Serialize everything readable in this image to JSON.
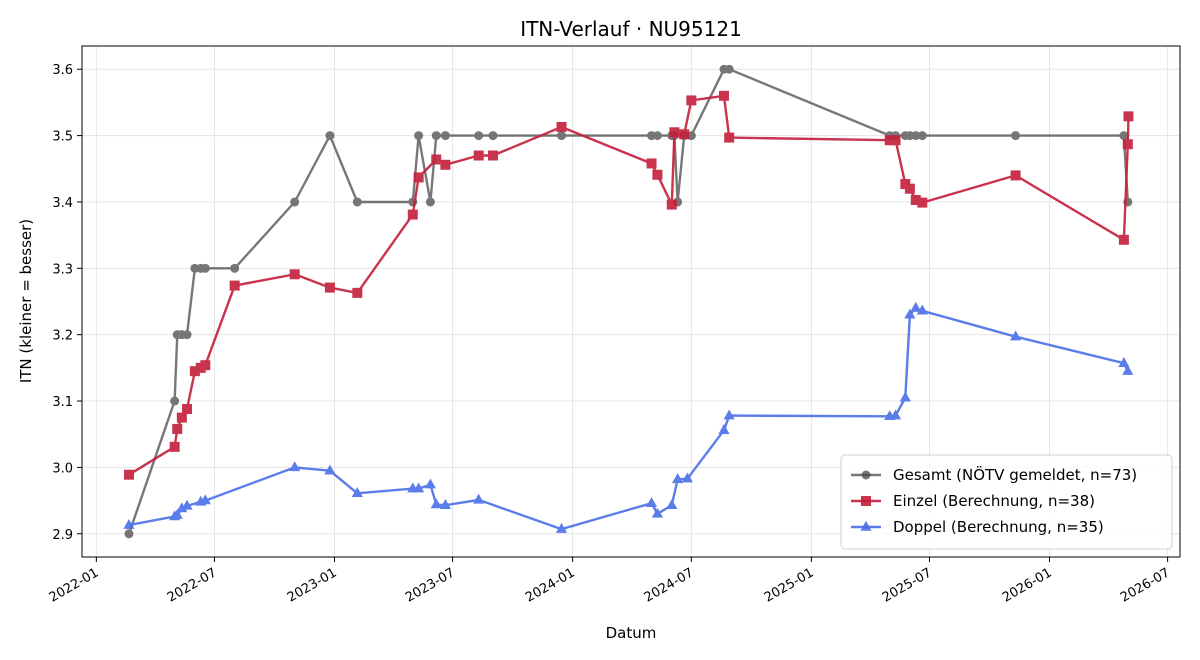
{
  "chart_data": {
    "type": "line",
    "title": "ITN-Verlauf · NU95121",
    "xlabel": "Datum",
    "ylabel": "ITN  (kleiner = besser)",
    "ylim": [
      2.865,
      3.635
    ],
    "xlim": [
      "2021-12-10",
      "2026-07-20"
    ],
    "grid": true,
    "legend_position": "lower-right",
    "x_ticks": [
      "2022-01",
      "2022-07",
      "2023-01",
      "2023-07",
      "2024-01",
      "2024-07",
      "2025-01",
      "2025-07",
      "2026-01",
      "2026-07"
    ],
    "y_ticks": [
      "2.9",
      "3.0",
      "3.1",
      "3.2",
      "3.3",
      "3.4",
      "3.5",
      "3.6"
    ],
    "series": [
      {
        "name": "Gesamt (NÖTV gemeldet, n=73)",
        "color": "#444444",
        "marker": "circle",
        "points": [
          [
            "2022-02-20",
            2.9
          ],
          [
            "2022-05-01",
            3.1
          ],
          [
            "2022-05-05",
            3.2
          ],
          [
            "2022-05-12",
            3.2
          ],
          [
            "2022-05-20",
            3.2
          ],
          [
            "2022-06-01",
            3.3
          ],
          [
            "2022-06-10",
            3.3
          ],
          [
            "2022-06-17",
            3.3
          ],
          [
            "2022-08-01",
            3.3
          ],
          [
            "2022-11-01",
            3.4
          ],
          [
            "2022-12-25",
            3.5
          ],
          [
            "2023-02-05",
            3.4
          ],
          [
            "2023-05-01",
            3.4
          ],
          [
            "2023-05-10",
            3.5
          ],
          [
            "2023-05-28",
            3.4
          ],
          [
            "2023-06-06",
            3.5
          ],
          [
            "2023-06-20",
            3.5
          ],
          [
            "2023-08-10",
            3.5
          ],
          [
            "2023-09-01",
            3.5
          ],
          [
            "2023-12-15",
            3.5
          ],
          [
            "2024-05-01",
            3.5
          ],
          [
            "2024-05-10",
            3.5
          ],
          [
            "2024-06-01",
            3.5
          ],
          [
            "2024-06-05",
            3.5
          ],
          [
            "2024-06-10",
            3.4
          ],
          [
            "2024-06-20",
            3.5
          ],
          [
            "2024-07-01",
            3.5
          ],
          [
            "2024-08-20",
            3.6
          ],
          [
            "2024-08-28",
            3.6
          ],
          [
            "2025-05-01",
            3.5
          ],
          [
            "2025-05-10",
            3.5
          ],
          [
            "2025-05-25",
            3.5
          ],
          [
            "2025-06-01",
            3.5
          ],
          [
            "2025-06-10",
            3.5
          ],
          [
            "2025-06-20",
            3.5
          ],
          [
            "2025-11-10",
            3.5
          ],
          [
            "2026-04-25",
            3.5
          ],
          [
            "2026-05-01",
            3.4
          ]
        ]
      },
      {
        "name": "Einzel (Berechnung, n=38)",
        "color": "#c41e3a",
        "marker": "square",
        "points": [
          [
            "2022-02-20",
            2.989
          ],
          [
            "2022-05-01",
            3.031
          ],
          [
            "2022-05-05",
            3.058
          ],
          [
            "2022-05-12",
            3.075
          ],
          [
            "2022-05-20",
            3.088
          ],
          [
            "2022-06-01",
            3.145
          ],
          [
            "2022-06-10",
            3.15
          ],
          [
            "2022-06-17",
            3.154
          ],
          [
            "2022-08-01",
            3.274
          ],
          [
            "2022-11-01",
            3.291
          ],
          [
            "2022-12-25",
            3.271
          ],
          [
            "2023-02-05",
            3.263
          ],
          [
            "2023-05-01",
            3.381
          ],
          [
            "2023-05-10",
            3.437
          ],
          [
            "2023-06-06",
            3.464
          ],
          [
            "2023-06-20",
            3.456
          ],
          [
            "2023-08-10",
            3.47
          ],
          [
            "2023-09-01",
            3.47
          ],
          [
            "2023-12-15",
            3.513
          ],
          [
            "2024-05-01",
            3.458
          ],
          [
            "2024-05-10",
            3.441
          ],
          [
            "2024-06-01",
            3.396
          ],
          [
            "2024-06-05",
            3.505
          ],
          [
            "2024-06-20",
            3.502
          ],
          [
            "2024-07-01",
            3.553
          ],
          [
            "2024-08-20",
            3.56
          ],
          [
            "2024-08-28",
            3.497
          ],
          [
            "2025-05-01",
            3.493
          ],
          [
            "2025-05-10",
            3.493
          ],
          [
            "2025-05-25",
            3.427
          ],
          [
            "2025-06-01",
            3.42
          ],
          [
            "2025-06-10",
            3.403
          ],
          [
            "2025-06-20",
            3.399
          ],
          [
            "2025-11-10",
            3.44
          ],
          [
            "2026-04-25",
            3.343
          ],
          [
            "2026-05-01",
            3.487
          ],
          [
            "2026-05-02",
            3.529
          ]
        ]
      },
      {
        "name": "Doppel (Berechnung, n=35)",
        "color": "#4a6fe8",
        "marker": "triangle",
        "points": [
          [
            "2022-02-20",
            2.913
          ],
          [
            "2022-05-01",
            2.926
          ],
          [
            "2022-05-05",
            2.928
          ],
          [
            "2022-05-12",
            2.938
          ],
          [
            "2022-05-20",
            2.942
          ],
          [
            "2022-06-10",
            2.948
          ],
          [
            "2022-06-17",
            2.95
          ],
          [
            "2022-11-01",
            3.0
          ],
          [
            "2022-12-25",
            2.995
          ],
          [
            "2023-02-05",
            2.961
          ],
          [
            "2023-05-01",
            2.968
          ],
          [
            "2023-05-10",
            2.968
          ],
          [
            "2023-05-28",
            2.974
          ],
          [
            "2023-06-06",
            2.944
          ],
          [
            "2023-06-20",
            2.943
          ],
          [
            "2023-08-10",
            2.951
          ],
          [
            "2023-12-15",
            2.907
          ],
          [
            "2024-05-01",
            2.946
          ],
          [
            "2024-05-10",
            2.93
          ],
          [
            "2024-06-01",
            2.943
          ],
          [
            "2024-06-10",
            2.982
          ],
          [
            "2024-06-25",
            2.983
          ],
          [
            "2024-08-20",
            3.056
          ],
          [
            "2024-08-28",
            3.078
          ],
          [
            "2025-05-01",
            3.077
          ],
          [
            "2025-05-10",
            3.078
          ],
          [
            "2025-05-25",
            3.105
          ],
          [
            "2025-06-01",
            3.23
          ],
          [
            "2025-06-10",
            3.24
          ],
          [
            "2025-06-20",
            3.236
          ],
          [
            "2025-11-10",
            3.197
          ],
          [
            "2026-04-25",
            3.157
          ],
          [
            "2026-05-01",
            3.145
          ]
        ]
      }
    ]
  }
}
